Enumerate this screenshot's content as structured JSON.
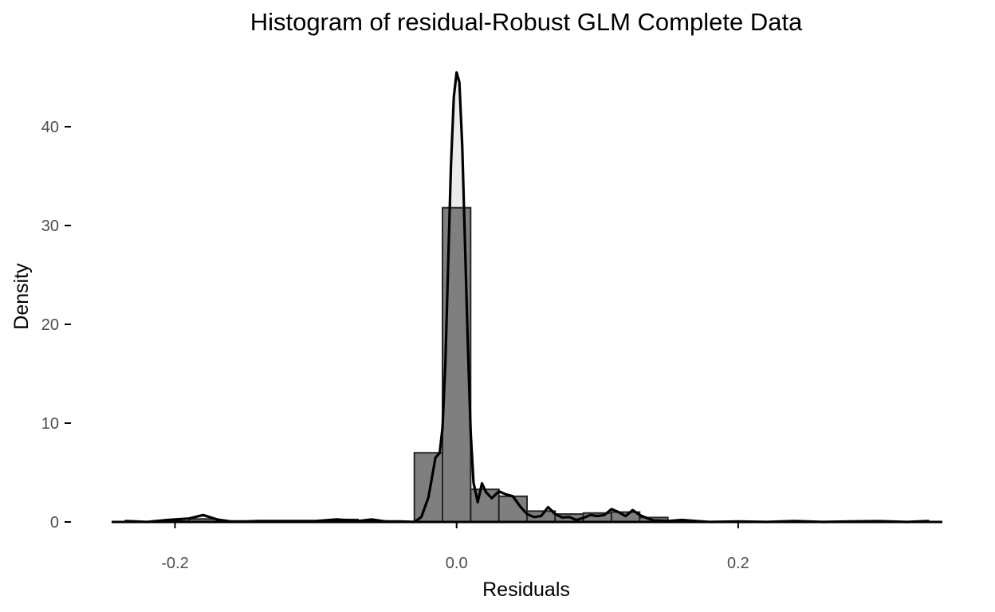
{
  "chart_data": {
    "type": "bar",
    "title": "Histogram of residual-Robust GLM Complete Data",
    "xlabel": "Residuals",
    "ylabel": "Density",
    "xlim": [
      -0.245,
      0.345
    ],
    "ylim": [
      0,
      47.5
    ],
    "x_ticks": [
      -0.2,
      0.0,
      0.2
    ],
    "x_tick_labels": [
      "-0.2",
      "0.0",
      "0.2"
    ],
    "y_ticks": [
      0,
      10,
      20,
      30,
      40
    ],
    "y_tick_labels": [
      "0",
      "10",
      "20",
      "30",
      "40"
    ],
    "grid": false,
    "legend": "none",
    "colors": {
      "bar_fill": "#7f7f7f",
      "bar_stroke": "#262626",
      "density_fill": "#ebebeb",
      "density_line": "#000000"
    },
    "bins": [
      {
        "x0": -0.21,
        "x1": -0.19,
        "value": 0.08
      },
      {
        "x0": -0.19,
        "x1": -0.17,
        "value": 0.3
      },
      {
        "x0": -0.17,
        "x1": -0.15,
        "value": 0.05
      },
      {
        "x0": -0.15,
        "x1": -0.13,
        "value": 0.05
      },
      {
        "x0": -0.13,
        "x1": -0.11,
        "value": 0.1
      },
      {
        "x0": -0.11,
        "x1": -0.09,
        "value": 0.1
      },
      {
        "x0": -0.09,
        "x1": -0.07,
        "value": 0.25
      },
      {
        "x0": -0.07,
        "x1": -0.05,
        "value": 0.1
      },
      {
        "x0": -0.05,
        "x1": -0.03,
        "value": 0.05
      },
      {
        "x0": -0.03,
        "x1": -0.01,
        "value": 7.0
      },
      {
        "x0": -0.01,
        "x1": 0.01,
        "value": 31.8
      },
      {
        "x0": 0.01,
        "x1": 0.03,
        "value": 3.3
      },
      {
        "x0": 0.03,
        "x1": 0.05,
        "value": 2.6
      },
      {
        "x0": 0.05,
        "x1": 0.07,
        "value": 1.1
      },
      {
        "x0": 0.07,
        "x1": 0.09,
        "value": 0.8
      },
      {
        "x0": 0.09,
        "x1": 0.11,
        "value": 0.9
      },
      {
        "x0": 0.11,
        "x1": 0.13,
        "value": 1.0
      },
      {
        "x0": 0.13,
        "x1": 0.15,
        "value": 0.45
      }
    ],
    "density": {
      "x": [
        -0.235,
        -0.22,
        -0.205,
        -0.19,
        -0.18,
        -0.17,
        -0.16,
        -0.15,
        -0.14,
        -0.12,
        -0.1,
        -0.085,
        -0.07,
        -0.06,
        -0.05,
        -0.04,
        -0.03,
        -0.025,
        -0.02,
        -0.015,
        -0.012,
        -0.01,
        -0.008,
        -0.006,
        -0.004,
        -0.002,
        0.0,
        0.002,
        0.004,
        0.006,
        0.008,
        0.01,
        0.012,
        0.015,
        0.018,
        0.021,
        0.025,
        0.03,
        0.035,
        0.04,
        0.045,
        0.05,
        0.055,
        0.06,
        0.065,
        0.07,
        0.075,
        0.08,
        0.085,
        0.09,
        0.095,
        0.1,
        0.105,
        0.11,
        0.115,
        0.12,
        0.125,
        0.13,
        0.135,
        0.14,
        0.15,
        0.16,
        0.17,
        0.18,
        0.2,
        0.22,
        0.24,
        0.26,
        0.28,
        0.3,
        0.32,
        0.335
      ],
      "y": [
        0.1,
        0.0,
        0.2,
        0.35,
        0.7,
        0.25,
        0.05,
        0.05,
        0.1,
        0.1,
        0.1,
        0.25,
        0.1,
        0.25,
        0.05,
        0.05,
        0.0,
        0.5,
        2.5,
        6.5,
        7.0,
        9.5,
        16.0,
        26.0,
        36.0,
        43.0,
        45.5,
        44.5,
        38.0,
        28.0,
        18.0,
        9.0,
        4.0,
        2.0,
        3.9,
        3.0,
        2.4,
        3.1,
        2.8,
        2.6,
        1.6,
        0.8,
        0.5,
        0.6,
        1.5,
        0.8,
        0.45,
        0.5,
        0.2,
        0.4,
        0.7,
        0.6,
        0.7,
        1.3,
        1.0,
        0.6,
        1.2,
        0.7,
        0.4,
        0.15,
        0.1,
        0.2,
        0.1,
        0.0,
        0.05,
        0.0,
        0.1,
        0.0,
        0.05,
        0.08,
        0.0,
        0.1
      ]
    }
  }
}
